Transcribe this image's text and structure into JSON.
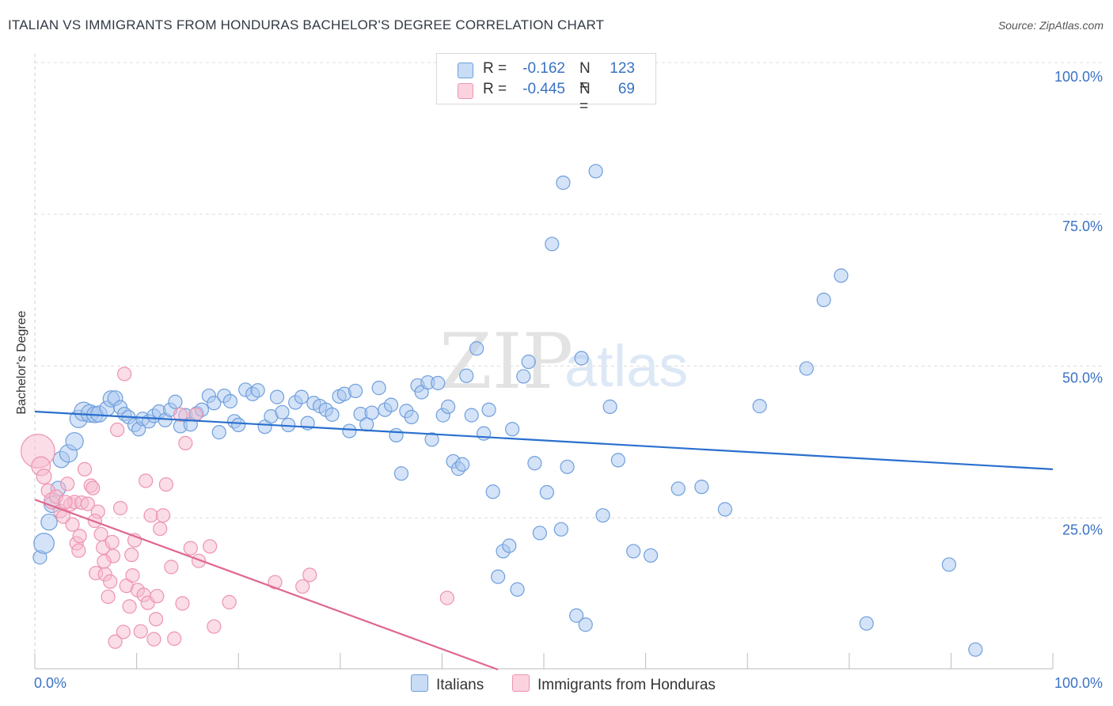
{
  "title": "ITALIAN VS IMMIGRANTS FROM HONDURAS BACHELOR'S DEGREE CORRELATION CHART",
  "source": "Source: ZipAtlas.com",
  "watermark": {
    "part1": "ZIP",
    "part2": "atlas"
  },
  "legend_top": {
    "rows": [
      {
        "r_label": "R =",
        "r_value": "-0.162",
        "n_label": "N =",
        "n_value": "123",
        "color": "#a9c8f0"
      },
      {
        "r_label": "R =",
        "r_value": "-0.445",
        "n_label": "N =",
        "n_value": "69",
        "color": "#f6bccd"
      }
    ]
  },
  "legend_bottom": [
    {
      "label": "Italians",
      "color": "#a9c8f0"
    },
    {
      "label": "Immigrants from Honduras",
      "color": "#f6bccd"
    }
  ],
  "chart_data": {
    "type": "scatter",
    "title": "ITALIAN VS IMMIGRANTS FROM HONDURAS BACHELOR'S DEGREE CORRELATION CHART",
    "xlabel": "",
    "ylabel": "Bachelor's Degree",
    "xlim": [
      0,
      100
    ],
    "ylim": [
      0,
      100
    ],
    "x_tick_labels": [
      {
        "value": 0,
        "label": "0.0%"
      },
      {
        "value": 100,
        "label": "100.0%"
      }
    ],
    "y_tick_labels": [
      {
        "value": 25,
        "label": "25.0%"
      },
      {
        "value": 50,
        "label": "50.0%"
      },
      {
        "value": 75,
        "label": "75.0%"
      },
      {
        "value": 100,
        "label": "100.0%"
      }
    ],
    "grid": true,
    "legend": "top-center",
    "series": [
      {
        "name": "Italians",
        "color": "#a9c8f0",
        "stroke": "#6f9fdc",
        "trend_color": "#2a6fce",
        "trend": {
          "x": [
            0,
            100
          ],
          "y": [
            42.5,
            33.0
          ]
        },
        "points": [
          [
            0.5,
            18.5,
            1
          ],
          [
            0.9,
            20.8,
            1.5
          ],
          [
            1.4,
            24.3,
            1.2
          ],
          [
            1.7,
            27.2,
            1.2
          ],
          [
            2.3,
            29.8,
            1.1
          ],
          [
            2.6,
            34.6,
            1.2
          ],
          [
            3.3,
            35.6,
            1.3
          ],
          [
            3.9,
            37.6,
            1.3
          ],
          [
            4.3,
            41.3,
            1.3
          ],
          [
            4.8,
            42.5,
            1.4
          ],
          [
            5.4,
            42.2,
            1.3
          ],
          [
            5.9,
            42.0,
            1.2
          ],
          [
            6.3,
            42.1,
            1.2
          ],
          [
            7.1,
            43.0,
            1.1
          ],
          [
            7.5,
            44.6,
            1.2
          ],
          [
            7.9,
            44.7,
            1.1
          ],
          [
            8.4,
            43.2,
            1.0
          ],
          [
            8.8,
            42.1,
            1.0
          ],
          [
            9.2,
            41.6,
            1.0
          ],
          [
            9.8,
            40.3,
            1.0
          ],
          [
            10.2,
            39.6,
            1.0
          ],
          [
            10.6,
            41.3,
            1.0
          ],
          [
            11.2,
            40.9,
            1.0
          ],
          [
            11.7,
            41.8,
            1.0
          ],
          [
            12.2,
            42.5,
            1.0
          ],
          [
            12.8,
            41.1,
            1.0
          ],
          [
            13.3,
            42.8,
            1.0
          ],
          [
            13.8,
            44.1,
            1.0
          ],
          [
            14.3,
            40.1,
            1.0
          ],
          [
            14.8,
            41.9,
            1.0
          ],
          [
            15.3,
            40.4,
            1.0
          ],
          [
            15.9,
            42.2,
            1.0
          ],
          [
            16.4,
            42.8,
            1.0
          ],
          [
            17.1,
            45.1,
            1.0
          ],
          [
            17.6,
            43.9,
            1.0
          ],
          [
            18.1,
            39.1,
            1.0
          ],
          [
            18.6,
            45.1,
            1.0
          ],
          [
            19.2,
            44.2,
            1.0
          ],
          [
            19.6,
            40.9,
            1.0
          ],
          [
            20.0,
            40.3,
            1.0
          ],
          [
            20.7,
            46.1,
            1.0
          ],
          [
            21.4,
            45.4,
            1.0
          ],
          [
            21.9,
            46.0,
            1.0
          ],
          [
            22.6,
            40.0,
            1.0
          ],
          [
            23.2,
            41.7,
            1.0
          ],
          [
            23.8,
            44.9,
            1.0
          ],
          [
            24.3,
            42.4,
            1.0
          ],
          [
            24.9,
            40.3,
            1.0
          ],
          [
            25.6,
            44.0,
            1.0
          ],
          [
            26.2,
            44.9,
            1.0
          ],
          [
            26.8,
            40.6,
            1.0
          ],
          [
            27.4,
            43.9,
            1.0
          ],
          [
            28.0,
            43.4,
            1.0
          ],
          [
            28.6,
            42.8,
            1.0
          ],
          [
            29.2,
            42.0,
            1.0
          ],
          [
            29.9,
            45.0,
            1.0
          ],
          [
            30.4,
            45.4,
            1.0
          ],
          [
            30.9,
            39.3,
            1.0
          ],
          [
            31.5,
            45.9,
            1.0
          ],
          [
            32.0,
            42.1,
            1.0
          ],
          [
            32.6,
            40.4,
            1.0
          ],
          [
            33.1,
            42.3,
            1.0
          ],
          [
            33.8,
            46.4,
            1.0
          ],
          [
            34.4,
            42.8,
            1.0
          ],
          [
            35.0,
            43.6,
            1.0
          ],
          [
            35.5,
            38.6,
            1.0
          ],
          [
            36.0,
            32.3,
            1.0
          ],
          [
            36.5,
            42.6,
            1.0
          ],
          [
            37.0,
            41.6,
            1.0
          ],
          [
            37.6,
            46.8,
            1.0
          ],
          [
            38.0,
            45.7,
            1.0
          ],
          [
            38.6,
            47.3,
            1.0
          ],
          [
            39.0,
            37.9,
            1.0
          ],
          [
            39.6,
            47.2,
            1.0
          ],
          [
            40.1,
            41.9,
            1.0
          ],
          [
            40.6,
            43.3,
            1.0
          ],
          [
            41.1,
            34.3,
            1.0
          ],
          [
            41.6,
            33.1,
            1.0
          ],
          [
            42.0,
            33.8,
            1.0
          ],
          [
            42.4,
            48.4,
            1.0
          ],
          [
            42.9,
            41.9,
            1.0
          ],
          [
            43.4,
            52.9,
            1.0
          ],
          [
            44.1,
            38.9,
            1.0
          ],
          [
            44.6,
            42.8,
            1.0
          ],
          [
            45.0,
            29.3,
            1.0
          ],
          [
            45.5,
            15.3,
            1.0
          ],
          [
            46.0,
            19.5,
            1.0
          ],
          [
            46.6,
            20.4,
            1.0
          ],
          [
            46.9,
            39.6,
            1.0
          ],
          [
            47.4,
            13.2,
            1.0
          ],
          [
            48.0,
            48.3,
            1.0
          ],
          [
            48.5,
            50.7,
            1.0
          ],
          [
            49.1,
            34.0,
            1.0
          ],
          [
            49.6,
            22.5,
            1.0
          ],
          [
            50.3,
            29.2,
            1.0
          ],
          [
            50.8,
            70.1,
            1.0
          ],
          [
            51.7,
            23.1,
            1.0
          ],
          [
            51.9,
            80.2,
            1.0
          ],
          [
            52.3,
            33.4,
            1.0
          ],
          [
            53.2,
            8.9,
            1.0
          ],
          [
            53.7,
            51.3,
            1.0
          ],
          [
            54.1,
            7.4,
            1.0
          ],
          [
            55.1,
            82.1,
            1.0
          ],
          [
            55.8,
            25.4,
            1.0
          ],
          [
            56.5,
            43.3,
            1.0
          ],
          [
            57.3,
            34.5,
            1.0
          ],
          [
            58.8,
            19.5,
            1.0
          ],
          [
            60.5,
            18.8,
            1.0
          ],
          [
            63.2,
            29.8,
            1.0
          ],
          [
            65.5,
            30.1,
            1.0
          ],
          [
            67.8,
            26.4,
            1.0
          ],
          [
            71.2,
            43.4,
            1.0
          ],
          [
            75.8,
            49.6,
            1.0
          ],
          [
            77.5,
            60.9,
            1.0
          ],
          [
            79.2,
            64.9,
            1.0
          ],
          [
            81.7,
            7.6,
            1.0
          ],
          [
            89.8,
            17.3,
            1.0
          ],
          [
            92.4,
            3.3,
            1.0
          ]
        ]
      },
      {
        "name": "Immigrants from Honduras",
        "color": "#f6bccd",
        "stroke": "#ee93b1",
        "trend_color": "#e0678f",
        "trend": {
          "x": [
            0,
            45.5
          ],
          "y": [
            28.0,
            0.0
          ]
        },
        "points": [
          [
            0.3,
            36.0,
            2.5
          ],
          [
            0.6,
            33.5,
            1.4
          ],
          [
            0.9,
            31.8,
            1.1
          ],
          [
            1.3,
            29.5,
            1.0
          ],
          [
            1.7,
            27.8,
            1.2
          ],
          [
            2.1,
            28.5,
            1.0
          ],
          [
            2.5,
            26.1,
            1.0
          ],
          [
            2.8,
            25.2,
            1.0
          ],
          [
            3.2,
            30.6,
            1.0
          ],
          [
            3.5,
            27.2,
            1.0
          ],
          [
            3.7,
            23.9,
            1.0
          ],
          [
            3.9,
            27.6,
            1.0
          ],
          [
            4.1,
            20.8,
            1.0
          ],
          [
            4.3,
            19.6,
            1.0
          ],
          [
            4.6,
            27.5,
            1.0
          ],
          [
            4.9,
            33.0,
            1.0
          ],
          [
            5.2,
            27.3,
            1.0
          ],
          [
            5.5,
            30.3,
            1.0
          ],
          [
            5.7,
            29.9,
            1.0
          ],
          [
            6.0,
            15.9,
            1.0
          ],
          [
            6.2,
            26.0,
            1.0
          ],
          [
            6.5,
            22.3,
            1.0
          ],
          [
            6.7,
            20.1,
            1.0
          ],
          [
            6.9,
            15.7,
            1.0
          ],
          [
            7.2,
            12.0,
            1.0
          ],
          [
            7.4,
            14.5,
            1.0
          ],
          [
            7.7,
            18.7,
            1.0
          ],
          [
            7.9,
            4.6,
            1.0
          ],
          [
            8.1,
            39.5,
            1.0
          ],
          [
            8.4,
            26.6,
            1.0
          ],
          [
            8.7,
            6.2,
            1.0
          ],
          [
            9.0,
            13.8,
            1.0
          ],
          [
            9.3,
            10.4,
            1.0
          ],
          [
            9.5,
            18.9,
            1.0
          ],
          [
            9.8,
            21.3,
            1.0
          ],
          [
            10.1,
            13.1,
            1.0
          ],
          [
            10.4,
            6.3,
            1.0
          ],
          [
            10.7,
            12.3,
            1.0
          ],
          [
            10.9,
            31.1,
            1.0
          ],
          [
            11.1,
            11.0,
            1.0
          ],
          [
            11.4,
            25.4,
            1.0
          ],
          [
            11.7,
            5.0,
            1.0
          ],
          [
            12.0,
            12.1,
            1.0
          ],
          [
            12.3,
            23.2,
            1.0
          ],
          [
            12.6,
            25.4,
            1.0
          ],
          [
            12.9,
            30.5,
            1.0
          ],
          [
            13.4,
            16.9,
            1.0
          ],
          [
            13.7,
            5.1,
            1.0
          ],
          [
            14.3,
            42.0,
            1.0
          ],
          [
            14.5,
            10.9,
            1.0
          ],
          [
            14.8,
            37.3,
            1.0
          ],
          [
            15.3,
            20.0,
            1.0
          ],
          [
            15.8,
            42.0,
            1.0
          ],
          [
            16.1,
            17.9,
            1.0
          ],
          [
            17.2,
            20.3,
            1.0
          ],
          [
            17.6,
            7.1,
            1.0
          ],
          [
            19.1,
            11.1,
            1.0
          ],
          [
            23.6,
            14.4,
            1.0
          ],
          [
            26.3,
            13.7,
            1.0
          ],
          [
            27.0,
            15.6,
            1.0
          ],
          [
            40.5,
            11.8,
            1.0
          ],
          [
            8.8,
            48.7,
            1.0
          ],
          [
            3.0,
            27.6,
            1.0
          ],
          [
            4.4,
            22.0,
            1.0
          ],
          [
            5.9,
            24.5,
            1.0
          ],
          [
            6.8,
            17.8,
            1.0
          ],
          [
            7.6,
            21.0,
            1.0
          ],
          [
            9.6,
            15.5,
            1.0
          ],
          [
            11.9,
            8.3,
            1.0
          ]
        ]
      }
    ]
  }
}
